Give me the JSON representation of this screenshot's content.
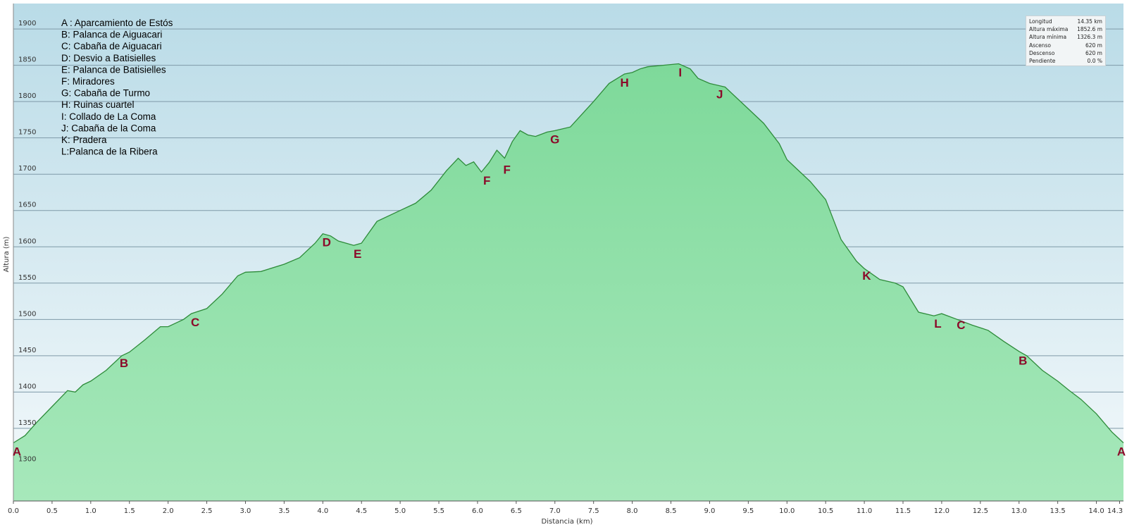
{
  "chart_data": {
    "type": "area",
    "title": "",
    "xlabel": "Distancia  (km)",
    "ylabel": "Altura (m)",
    "xlim": [
      0,
      14.35
    ],
    "ylim": [
      1250,
      1935
    ],
    "x_ticks": [
      "0.0",
      "0.5",
      "1.0",
      "1.5",
      "2.0",
      "2.5",
      "3.0",
      "3.5",
      "4.0",
      "4.5",
      "5.0",
      "5.5",
      "6.0",
      "6.5",
      "7.0",
      "7.5",
      "8.0",
      "8.5",
      "9.0",
      "9.5",
      "10.0",
      "10.5",
      "11.0",
      "11.5",
      "12.0",
      "12.5",
      "13.0",
      "13.5",
      "14.0",
      "14.3"
    ],
    "y_ticks": [
      "1300",
      "1350",
      "1400",
      "1450",
      "1500",
      "1550",
      "1600",
      "1650",
      "1700",
      "1750",
      "1800",
      "1850",
      "1900"
    ],
    "grid": true,
    "series": [
      {
        "x": [
          0,
          0.15,
          0.3,
          0.5,
          0.7,
          0.8,
          0.9,
          1.0,
          1.2,
          1.4,
          1.5,
          1.7,
          1.9,
          2.0,
          2.2,
          2.3,
          2.5,
          2.7,
          2.9,
          3.0,
          3.2,
          3.5,
          3.7,
          3.9,
          4.0,
          4.1,
          4.2,
          4.4,
          4.5,
          4.7,
          5.0,
          5.2,
          5.4,
          5.6,
          5.75,
          5.85,
          5.95,
          6.05,
          6.15,
          6.25,
          6.35,
          6.45,
          6.55,
          6.65,
          6.75,
          6.9,
          7.0,
          7.2,
          7.5,
          7.7,
          7.9,
          8.0,
          8.1,
          8.2,
          8.4,
          8.6,
          8.75,
          8.85,
          9.0,
          9.2,
          9.5,
          9.7,
          9.9,
          10.0,
          10.3,
          10.5,
          10.7,
          10.9,
          11.0,
          11.2,
          11.4,
          11.5,
          11.7,
          11.9,
          12.0,
          12.2,
          12.4,
          12.6,
          12.8,
          13.0,
          13.1,
          13.3,
          13.5,
          13.65,
          13.8,
          14.0,
          14.2,
          14.35
        ],
        "y": [
          1330,
          1340,
          1358,
          1380,
          1402,
          1400,
          1410,
          1415,
          1430,
          1450,
          1455,
          1472,
          1490,
          1490,
          1500,
          1508,
          1515,
          1535,
          1560,
          1565,
          1566,
          1576,
          1585,
          1605,
          1618,
          1615,
          1608,
          1602,
          1605,
          1635,
          1650,
          1660,
          1678,
          1705,
          1722,
          1712,
          1717,
          1703,
          1716,
          1733,
          1722,
          1745,
          1760,
          1754,
          1752,
          1758,
          1760,
          1765,
          1800,
          1825,
          1838,
          1840,
          1845,
          1848,
          1850,
          1852,
          1845,
          1832,
          1825,
          1820,
          1790,
          1770,
          1742,
          1720,
          1690,
          1665,
          1610,
          1580,
          1570,
          1555,
          1550,
          1545,
          1510,
          1505,
          1508,
          1500,
          1492,
          1485,
          1470,
          1456,
          1450,
          1430,
          1415,
          1402,
          1390,
          1370,
          1345,
          1330
        ]
      }
    ],
    "waypoints": [
      {
        "label": "A",
        "x": 0.0,
        "y": 1330
      },
      {
        "label": "B",
        "x": 1.43,
        "y": 1452
      },
      {
        "label": "C",
        "x": 2.35,
        "y": 1508
      },
      {
        "label": "D",
        "x": 4.05,
        "y": 1618
      },
      {
        "label": "E",
        "x": 4.45,
        "y": 1602
      },
      {
        "label": "F",
        "x": 6.12,
        "y": 1703
      },
      {
        "label": "F",
        "x": 6.38,
        "y": 1718
      },
      {
        "label": "G",
        "x": 7.0,
        "y": 1760
      },
      {
        "label": "H",
        "x": 7.9,
        "y": 1838
      },
      {
        "label": "I",
        "x": 8.62,
        "y": 1852
      },
      {
        "label": "J",
        "x": 9.13,
        "y": 1822
      },
      {
        "label": "K",
        "x": 11.03,
        "y": 1572
      },
      {
        "label": "L",
        "x": 11.95,
        "y": 1506
      },
      {
        "label": "C",
        "x": 12.25,
        "y": 1504
      },
      {
        "label": "B",
        "x": 13.05,
        "y": 1455
      },
      {
        "label": "A",
        "x": 14.35,
        "y": 1330
      }
    ],
    "legend_lines": [
      "A : Aparcamiento de Estós",
      "B:  Palanca de Aiguacari",
      "C: Cabaña de  Aiguacari",
      "D: Desvio a Batisielles",
      "E: Palanca de Batisielles",
      "F: Miradores",
      "G: Cabaña de Turmo",
      "H: Ruinas cuartel",
      "I: Collado de La Coma",
      "J: Cabaña de la Coma",
      "K: Pradera",
      "L:Palanca de la Ribera"
    ],
    "stats": [
      {
        "label": "Longitud",
        "value": "14.35 km"
      },
      {
        "label": "Altura máxima",
        "value": "1852.6 m"
      },
      {
        "label": "Altura mínima",
        "value": "1326.3 m"
      },
      {
        "label": "Ascenso",
        "value": "620 m"
      },
      {
        "label": "Descenso",
        "value": "620 m"
      },
      {
        "label": "Pendiente",
        "value": "0.0 %"
      }
    ],
    "colors": {
      "sky_top": "#b9dbe7",
      "sky_bottom": "#f4f9fb",
      "fill_top": "#7ed99a",
      "fill_bottom": "#a7e8bb",
      "line": "#2e8b3a",
      "grid": "#7f9aa8",
      "waypoint": "#8b0a2a"
    }
  }
}
